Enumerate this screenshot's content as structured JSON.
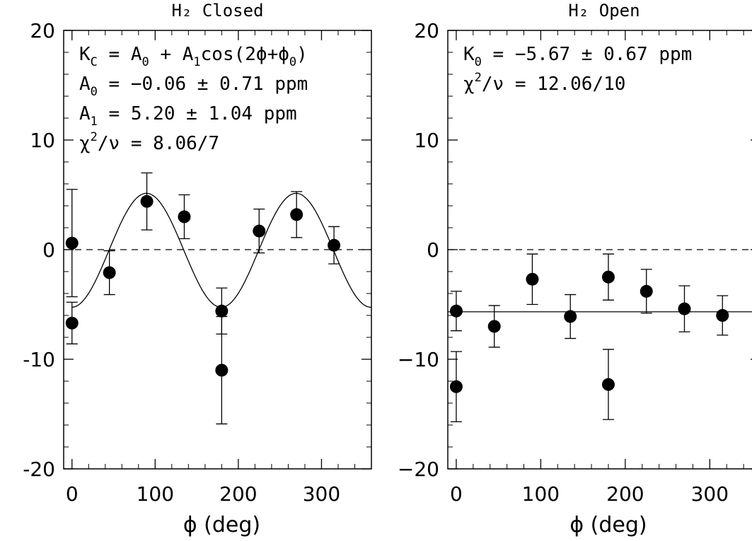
{
  "chart_data": [
    {
      "type": "scatter",
      "title": "H₂ Closed",
      "xlabel": "ϕ (deg)",
      "ylabel": "",
      "xlim": [
        -10,
        360
      ],
      "ylim": [
        -20,
        20
      ],
      "xticks": [
        0,
        100,
        200,
        300
      ],
      "yticks": [
        -20,
        -10,
        0,
        10,
        20
      ],
      "xtick_labels": [
        "0",
        "100",
        "200",
        "300"
      ],
      "ytick_labels": [
        "-20",
        "-10",
        "0",
        "10",
        "20"
      ],
      "zero_line": "dashed",
      "fit": {
        "kind": "cosine",
        "A0": -0.06,
        "A1": 5.2,
        "period_factor": 2,
        "phase_deg": 181
      },
      "points": [
        {
          "x": 0,
          "y": 0.6,
          "err": 4.9
        },
        {
          "x": 0,
          "y": -6.7,
          "err": 1.9
        },
        {
          "x": 45,
          "y": -2.1,
          "err": 2.0
        },
        {
          "x": 90,
          "y": 4.4,
          "err": 2.6
        },
        {
          "x": 135,
          "y": 3.0,
          "err": 2.0
        },
        {
          "x": 180,
          "y": -5.6,
          "err": 2.1
        },
        {
          "x": 180,
          "y": -11.0,
          "err": 4.9
        },
        {
          "x": 225,
          "y": 1.7,
          "err": 2.0
        },
        {
          "x": 270,
          "y": 3.2,
          "err": 2.1
        },
        {
          "x": 315,
          "y": 0.4,
          "err": 1.7
        }
      ],
      "annotations": [
        {
          "parts": [
            [
              "K",
              "n"
            ],
            [
              "C",
              "sub"
            ],
            [
              " = A",
              "n"
            ],
            [
              "0",
              "sub"
            ],
            [
              " + A",
              "n"
            ],
            [
              "1",
              "sub"
            ],
            [
              "cos(2ϕ+ϕ",
              "n"
            ],
            [
              "0",
              "sub"
            ],
            [
              ")",
              "n"
            ]
          ]
        },
        {
          "parts": [
            [
              "A",
              "n"
            ],
            [
              "0",
              "sub"
            ],
            [
              " = −0.06 ± 0.71 ppm",
              "n"
            ]
          ]
        },
        {
          "parts": [
            [
              "A",
              "n"
            ],
            [
              "1",
              "sub"
            ],
            [
              " =  5.20 ± 1.04 ppm",
              "n"
            ]
          ]
        },
        {
          "parts": [
            [
              "χ",
              "n"
            ],
            [
              "2",
              "sup"
            ],
            [
              "/ν = 8.06/7",
              "n"
            ]
          ]
        }
      ]
    },
    {
      "type": "scatter",
      "title": "H₂ Open",
      "xlabel": "ϕ (deg)",
      "ylabel": "",
      "xlim": [
        -10,
        360
      ],
      "ylim": [
        -20,
        20
      ],
      "xticks": [
        0,
        100,
        200,
        300
      ],
      "yticks": [
        -20,
        -10,
        0,
        10,
        20
      ],
      "xtick_labels": [
        "0",
        "100",
        "200",
        "300"
      ],
      "ytick_labels": [
        "−20",
        "−10",
        "0",
        "10",
        "20"
      ],
      "zero_line": "dashed",
      "fit": {
        "kind": "constant",
        "K0": -5.67
      },
      "points": [
        {
          "x": 0,
          "y": -5.6,
          "err": 1.8
        },
        {
          "x": 0,
          "y": -12.5,
          "err": 3.2
        },
        {
          "x": 45,
          "y": -7.0,
          "err": 1.9
        },
        {
          "x": 90,
          "y": -2.7,
          "err": 2.3
        },
        {
          "x": 135,
          "y": -6.1,
          "err": 2.0
        },
        {
          "x": 180,
          "y": -2.5,
          "err": 2.1
        },
        {
          "x": 180,
          "y": -12.3,
          "err": 3.2
        },
        {
          "x": 225,
          "y": -3.8,
          "err": 2.0
        },
        {
          "x": 270,
          "y": -5.4,
          "err": 2.1
        },
        {
          "x": 315,
          "y": -6.0,
          "err": 1.8
        }
      ],
      "annotations": [
        {
          "parts": [
            [
              "K",
              "n"
            ],
            [
              "0",
              "sub"
            ],
            [
              " = −5.67 ± 0.67 ppm",
              "n"
            ]
          ]
        },
        {
          "parts": [
            [
              "χ",
              "n"
            ],
            [
              "2",
              "sup"
            ],
            [
              "/ν = 12.06/10",
              "n"
            ]
          ]
        }
      ]
    }
  ]
}
